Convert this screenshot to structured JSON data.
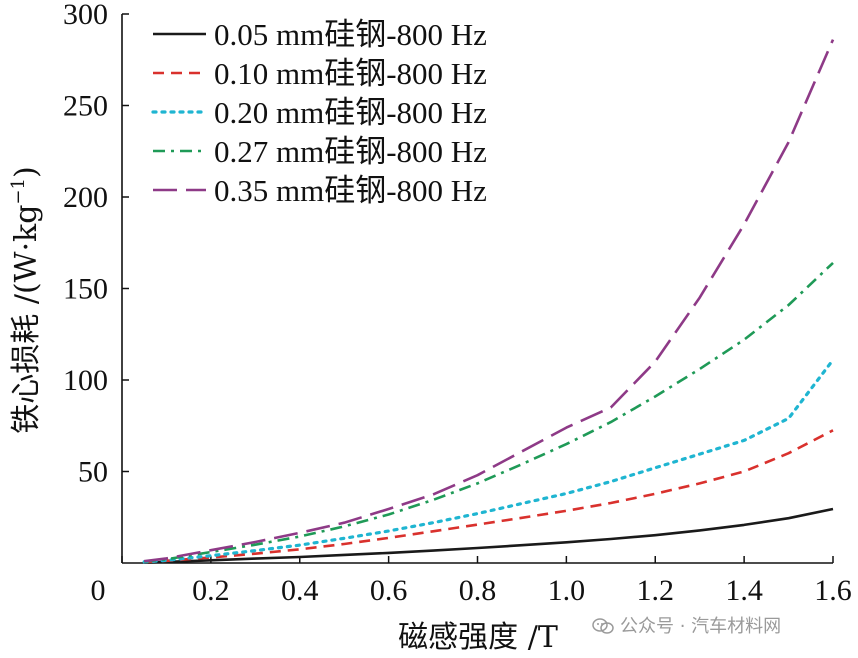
{
  "chart_data": {
    "type": "line",
    "title": "",
    "xlabel": "磁感强度 /T",
    "ylabel_main": "铁心损耗 /(W·kg",
    "ylabel_sup": "−1",
    "ylabel_close": ")",
    "xlim": [
      0.05,
      1.6
    ],
    "ylim": [
      0,
      300
    ],
    "x_ticks": [
      0,
      0.2,
      0.4,
      0.6,
      0.8,
      1.0,
      1.2,
      1.4,
      1.6
    ],
    "x_tick_labels": [
      "0",
      "0.2",
      "0.4",
      "0.6",
      "0.8",
      "1.0",
      "1.2",
      "1.4",
      "1.6"
    ],
    "y_ticks": [
      50,
      100,
      150,
      200,
      250,
      300
    ],
    "y_tick_labels": [
      "50",
      "100",
      "150",
      "200",
      "250",
      "300"
    ],
    "legend_position": "top-left",
    "x": [
      0.05,
      0.1,
      0.2,
      0.3,
      0.4,
      0.5,
      0.6,
      0.7,
      0.8,
      0.9,
      1.0,
      1.1,
      1.2,
      1.3,
      1.4,
      1.5,
      1.6
    ],
    "series": [
      {
        "name": "0.05 mm硅钢-800 Hz",
        "color": "#1a1a1a",
        "dash": "solid",
        "values": [
          0.2,
          0.6,
          1.5,
          2.4,
          3.3,
          4.4,
          5.5,
          6.8,
          8.2,
          9.7,
          11.3,
          13.1,
          15.2,
          17.8,
          20.8,
          24.5,
          29.5
        ]
      },
      {
        "name": "0.10 mm硅钢-800 Hz",
        "color": "#d9312d",
        "dash": "dash",
        "values": [
          0.5,
          1.2,
          3.0,
          5.1,
          7.5,
          10.4,
          13.7,
          17.3,
          21.0,
          24.7,
          28.5,
          32.8,
          37.8,
          43.5,
          50.0,
          60.0,
          72.5
        ]
      },
      {
        "name": "0.20 mm硅钢-800 Hz",
        "color": "#1fb5d1",
        "dash": "dot",
        "values": [
          0.6,
          1.5,
          4.0,
          6.8,
          9.8,
          13.5,
          17.5,
          22.0,
          27.0,
          32.5,
          38.0,
          44.5,
          52.0,
          59.5,
          67.0,
          79.0,
          111.0
        ]
      },
      {
        "name": "0.27 mm硅钢-800 Hz",
        "color": "#1f9a57",
        "dash": "dashdot",
        "values": [
          0.8,
          2.0,
          6.0,
          10.0,
          14.5,
          20.0,
          26.5,
          34.5,
          43.5,
          54.0,
          65.0,
          77.0,
          91.0,
          106.0,
          122.0,
          141.0,
          164.0
        ]
      },
      {
        "name": "0.35 mm硅钢-800 Hz",
        "color": "#8e3a87",
        "dash": "longdash",
        "values": [
          1.0,
          2.5,
          7.0,
          11.5,
          16.5,
          22.0,
          29.5,
          37.5,
          48.0,
          61.0,
          74.0,
          85.0,
          110.0,
          145.0,
          185.0,
          230.0,
          286.0
        ]
      }
    ]
  },
  "watermark": {
    "text": "公众号 · 汽车材料网",
    "icon": "wechat-icon"
  }
}
